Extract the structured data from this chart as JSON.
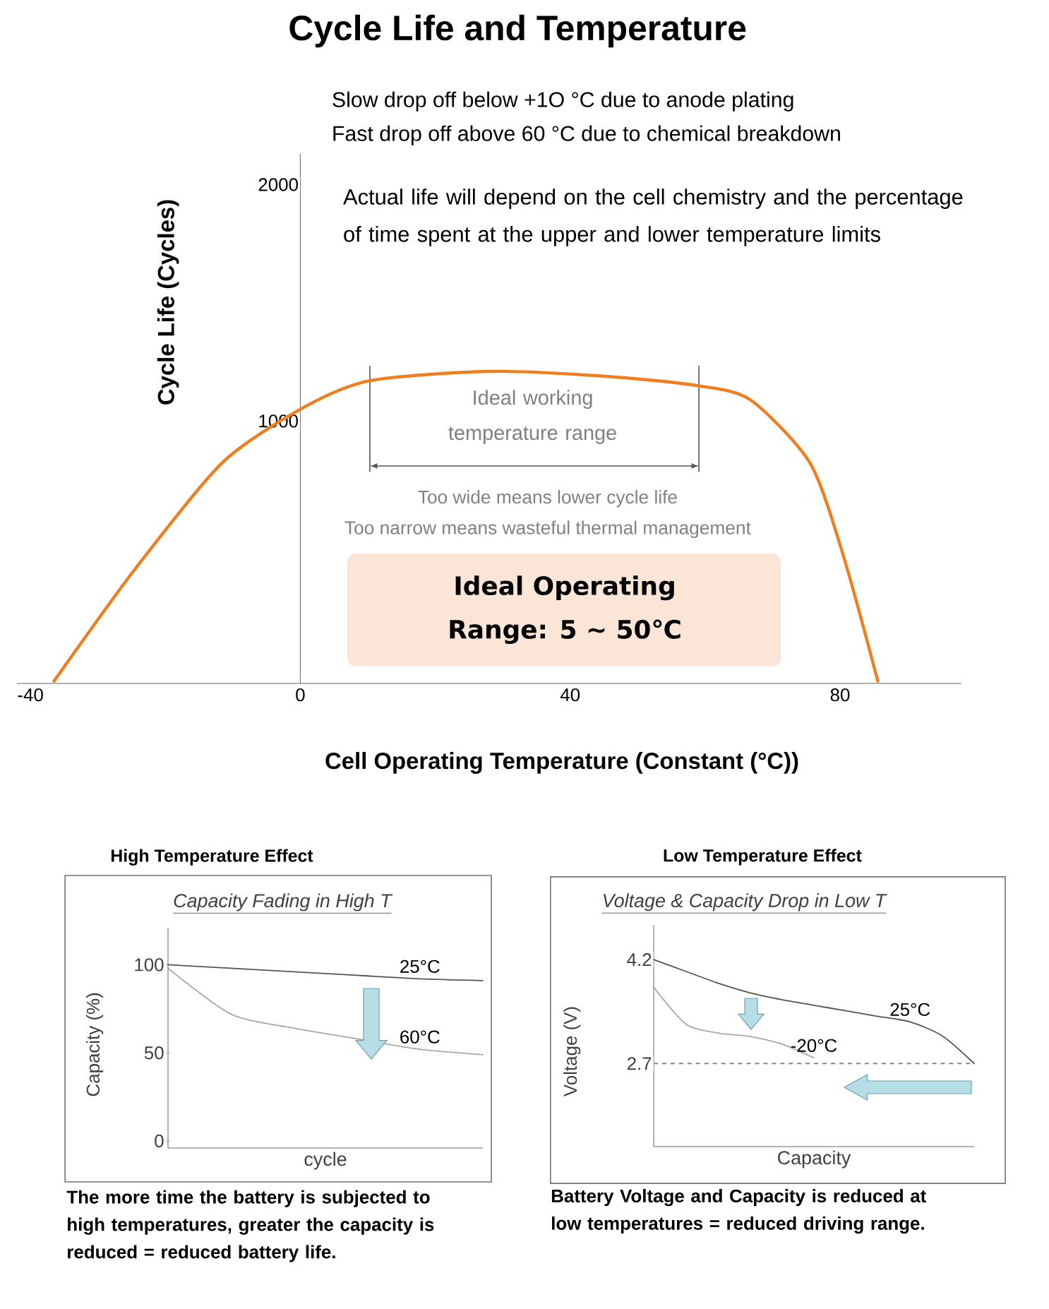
{
  "chart_data": [
    {
      "type": "line",
      "title": "Cycle Life and Temperature",
      "xlabel": "Cell Operating Temperature (Constant (°C))",
      "ylabel": "Cycle Life (Cycles)",
      "x": [
        -36.5,
        -24.6,
        -11.7,
        0,
        10.2,
        28.1,
        45,
        58.8,
        66.7,
        75.6,
        80.6,
        85.6
      ],
      "values": [
        -100,
        370,
        820,
        1050,
        1170,
        1210,
        1190,
        1150,
        1090,
        820,
        420,
        -100
      ],
      "color": "#f07d1e",
      "xlim": [
        -42,
        98
      ],
      "ylim": [
        -110,
        2130
      ],
      "xticks": [
        -40,
        0,
        40,
        80
      ],
      "yticks": [
        1000,
        2000
      ],
      "annotations": [
        "Slow drop off below +1O °C due to anode plating",
        "Fast drop off above 60 °C due to chemical breakdown",
        "Actual life will depend on the cell chemistry and the percentage of time spent at the upper and lower temperature limits",
        "Ideal working temperature range",
        "Too wide means lower cycle life",
        "Too narrow means wasteful thermal management",
        "Ideal Operating",
        "Range: 5 ~ 50℃"
      ]
    },
    {
      "type": "line",
      "title": "High Temperature Effect",
      "subtitle": "Capacity Fading in High T",
      "xlabel": "cycle",
      "ylabel": "Capacity (%)",
      "categories": [
        null,
        null,
        null,
        null,
        null,
        null
      ],
      "series": [
        {
          "name": "25°C",
          "color": "#555555",
          "line_style": "solid",
          "values": [
            100,
            98,
            96,
            94,
            92,
            91
          ]
        },
        {
          "name": "60°C",
          "color": "#999999",
          "line_style": "dotted",
          "values": [
            98,
            72,
            64,
            58,
            52,
            49
          ]
        }
      ],
      "ylim": [
        -4,
        121
      ],
      "yticks": [
        0,
        50,
        100
      ],
      "tick_labels": "y",
      "annotations": [
        "The more time the battery is subjected to high temperatures, greater the capacity is reduced = reduced battery life."
      ]
    },
    {
      "type": "line",
      "title": "Low Temperature Effect",
      "subtitle": "Voltage & Capacity Drop in Low T",
      "xlabel": "Capacity",
      "ylabel": "Voltage (V)",
      "categories": [
        null,
        null,
        null,
        null,
        null,
        null,
        null,
        null,
        null,
        null,
        null
      ],
      "series": [
        {
          "name": "25°C",
          "color": "#555555",
          "line_style": "solid",
          "values": [
            4.2,
            4.03,
            3.86,
            3.72,
            3.62,
            3.54,
            3.46,
            3.38,
            3.3,
            3.1,
            2.7
          ]
        },
        {
          "name": "-20°C",
          "color": "#999999",
          "line_style": "dotted",
          "values": [
            3.8,
            3.27,
            3.14,
            3.09,
            2.98,
            2.78,
            null,
            null,
            null,
            null,
            null
          ]
        }
      ],
      "ylim": [
        1.5,
        4.7
      ],
      "yticks": [
        2.7,
        4.2
      ],
      "tick_labels": "y",
      "ref_lines": [
        {
          "axis": "y",
          "value": 2.7,
          "color": "#888888",
          "line_style": "dashed"
        }
      ],
      "annotations": [
        "Battery Voltage and Capacity is reduced at low temperatures = reduced driving range."
      ]
    }
  ]
}
